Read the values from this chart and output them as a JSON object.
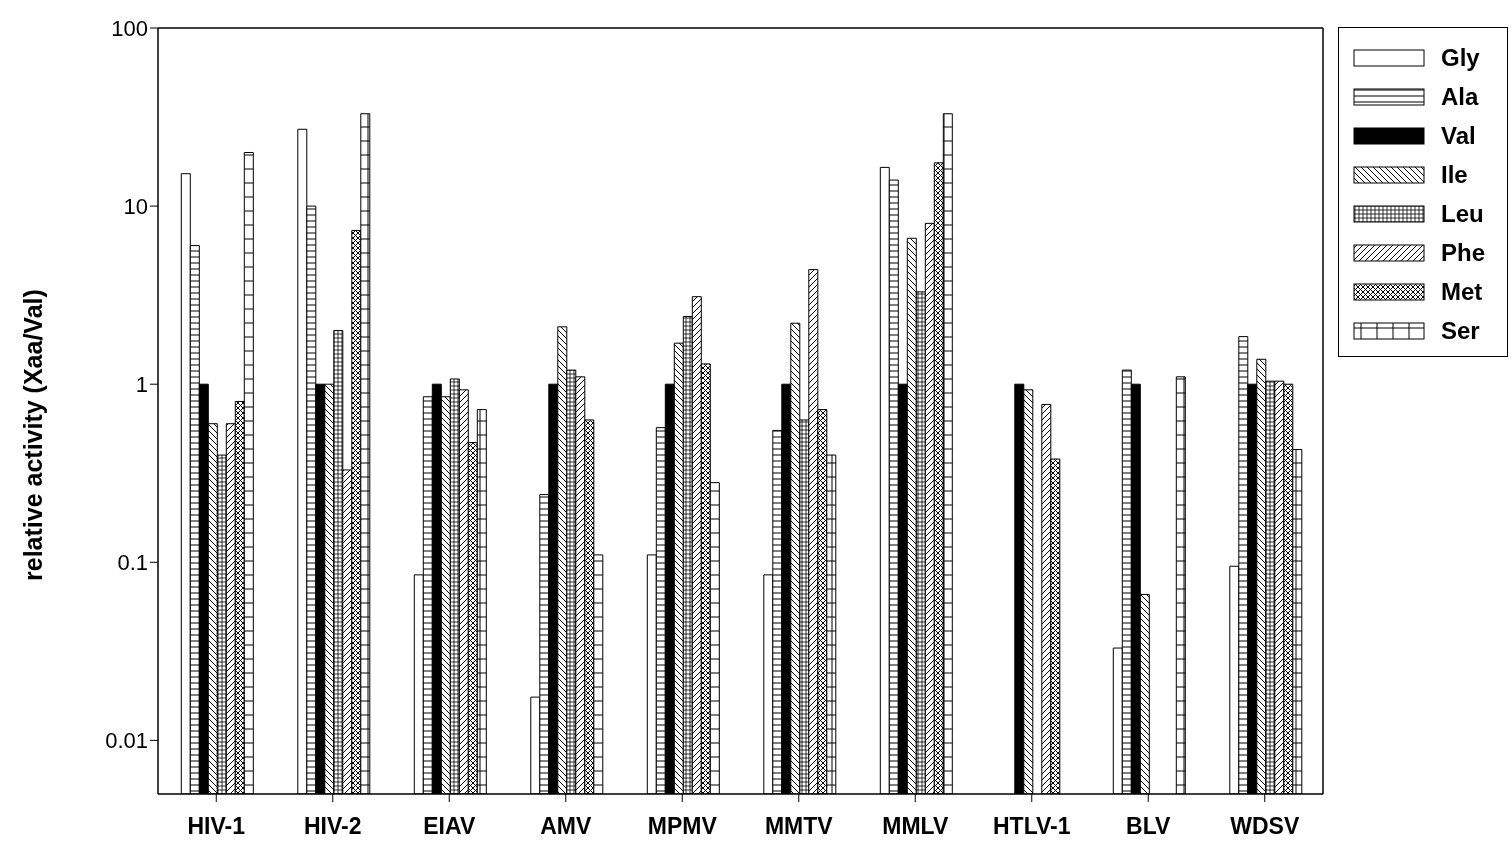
{
  "chart_data": {
    "type": "bar",
    "ylabel": "relative activity (Xaa/Val)",
    "categories": [
      "HIV-1",
      "HIV-2",
      "EIAV",
      "AMV",
      "MPMV",
      "MMTV",
      "MMLV",
      "HTLV-1",
      "BLV",
      "WDSV"
    ],
    "series": [
      {
        "name": "Gly",
        "color": "#ffffff",
        "values": [
          15.2,
          27,
          0.085,
          0.0175,
          0.11,
          0.085,
          16.5,
          null,
          0.033,
          0.095
        ]
      },
      {
        "name": "Ala",
        "color": "#000000",
        "values": [
          6.0,
          10,
          0.85,
          0.24,
          0.57,
          0.55,
          14,
          null,
          1.2,
          1.85
        ]
      },
      {
        "name": "Val",
        "color": "#000000",
        "values": [
          1,
          1,
          1,
          1,
          1,
          1,
          1,
          1,
          1,
          1
        ]
      },
      {
        "name": "Ile",
        "color": "#000000",
        "values": [
          0.6,
          1,
          0.85,
          2.1,
          1.7,
          2.2,
          6.6,
          0.93,
          0.066,
          1.38
        ]
      },
      {
        "name": "Leu",
        "color": "#000000",
        "values": [
          0.4,
          2.0,
          1.07,
          1.2,
          2.4,
          0.63,
          3.3,
          null,
          null,
          1.04
        ]
      },
      {
        "name": "Phe",
        "color": "#000000",
        "values": [
          0.6,
          0.33,
          0.93,
          1.1,
          3.1,
          4.4,
          8,
          0.77,
          null,
          1.04
        ]
      },
      {
        "name": "Met",
        "color": "#000000",
        "values": [
          0.8,
          7.3,
          0.47,
          0.63,
          1.3,
          0.72,
          17.5,
          0.38,
          null,
          1.0
        ]
      },
      {
        "name": "Ser",
        "color": "#000000",
        "values": [
          20,
          33,
          0.72,
          0.11,
          0.28,
          0.4,
          33,
          null,
          1.1,
          0.43
        ]
      }
    ],
    "log": "y",
    "ylim": [
      0.005,
      100
    ],
    "yticks": [
      0.01,
      0.1,
      1,
      10,
      100
    ],
    "grid": false,
    "legend": "right"
  }
}
